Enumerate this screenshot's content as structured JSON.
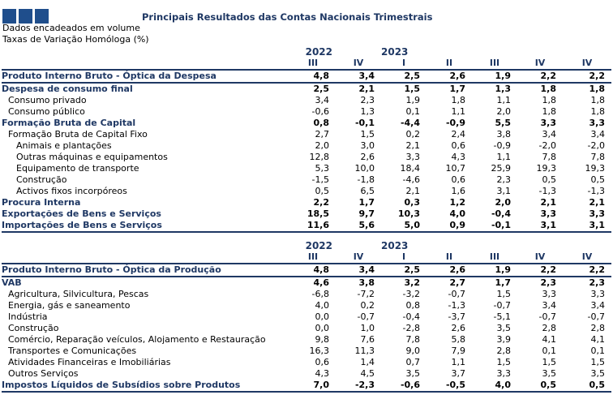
{
  "header": {
    "title": "Principais Resultados das Contas Nacionais Trimestrais",
    "subtitle1": "Dados encadeados em volume",
    "subtitle2": "Taxas de Variação Homóloga (%)"
  },
  "colors": {
    "brand": "#1f4e8c",
    "heading": "#1f3864"
  },
  "table1": {
    "years": [
      "2022",
      "2023"
    ],
    "quarters": [
      "III",
      "IV",
      "I",
      "II",
      "III",
      "IV",
      "IV"
    ],
    "rows": [
      {
        "label": "Produto Interno Bruto - Óptica da Despesa",
        "level": 0,
        "values": [
          "4,8",
          "3,4",
          "2,5",
          "2,6",
          "1,9",
          "2,2",
          "2,2"
        ]
      },
      {
        "label": "Despesa de consumo final",
        "level": 0,
        "values": [
          "2,5",
          "2,1",
          "1,5",
          "1,7",
          "1,3",
          "1,8",
          "1,8"
        ]
      },
      {
        "label": "Consumo privado",
        "level": 1,
        "values": [
          "3,4",
          "2,3",
          "1,9",
          "1,8",
          "1,1",
          "1,8",
          "1,8"
        ]
      },
      {
        "label": "Consumo público",
        "level": 1,
        "values": [
          "-0,6",
          "1,3",
          "0,1",
          "1,1",
          "2,0",
          "1,8",
          "1,8"
        ]
      },
      {
        "label": "Formação Bruta de Capital",
        "level": 0,
        "values": [
          "0,8",
          "-0,1",
          "-4,4",
          "-0,9",
          "5,5",
          "3,3",
          "3,3"
        ]
      },
      {
        "label": "Formação Bruta de Capital Fixo",
        "level": 1,
        "values": [
          "2,7",
          "1,5",
          "0,2",
          "2,4",
          "3,8",
          "3,4",
          "3,4"
        ]
      },
      {
        "label": "Animais e plantações",
        "level": 2,
        "values": [
          "2,0",
          "3,0",
          "2,1",
          "0,6",
          "-0,9",
          "-2,0",
          "-2,0"
        ]
      },
      {
        "label": "Outras máquinas e equipamentos",
        "level": 2,
        "values": [
          "12,8",
          "2,6",
          "3,3",
          "4,3",
          "1,1",
          "7,8",
          "7,8"
        ]
      },
      {
        "label": "Equipamento de transporte",
        "level": 2,
        "values": [
          "5,3",
          "10,0",
          "18,4",
          "10,7",
          "25,9",
          "19,3",
          "19,3"
        ]
      },
      {
        "label": "Construção",
        "level": 2,
        "values": [
          "-1,5",
          "-1,8",
          "-4,6",
          "0,6",
          "2,3",
          "0,5",
          "0,5"
        ]
      },
      {
        "label": "Activos fixos incorpóreos",
        "level": 2,
        "values": [
          "0,5",
          "6,5",
          "2,1",
          "1,6",
          "3,1",
          "-1,3",
          "-1,3"
        ]
      },
      {
        "label": "Procura Interna",
        "level": 0,
        "values": [
          "2,2",
          "1,7",
          "0,3",
          "1,2",
          "2,0",
          "2,1",
          "2,1"
        ]
      },
      {
        "label": "Exportações de Bens e Serviços",
        "level": 0,
        "values": [
          "18,5",
          "9,7",
          "10,3",
          "4,0",
          "-0,4",
          "3,3",
          "3,3"
        ]
      },
      {
        "label": "Importações de Bens e Serviços",
        "level": 0,
        "values": [
          "11,6",
          "5,6",
          "5,0",
          "0,9",
          "-0,1",
          "3,1",
          "3,1"
        ]
      }
    ]
  },
  "table2": {
    "years": [
      "2022",
      "2023"
    ],
    "quarters": [
      "III",
      "IV",
      "I",
      "II",
      "III",
      "IV",
      "IV"
    ],
    "rows": [
      {
        "label": "Produto Interno Bruto - Óptica da Produção",
        "level": 0,
        "values": [
          "4,8",
          "3,4",
          "2,5",
          "2,6",
          "1,9",
          "2,2",
          "2,2"
        ]
      },
      {
        "label": "VAB",
        "level": 0,
        "values": [
          "4,6",
          "3,8",
          "3,2",
          "2,7",
          "1,7",
          "2,3",
          "2,3"
        ]
      },
      {
        "label": "Agricultura, Silvicultura, Pescas",
        "level": 1,
        "values": [
          "-6,8",
          "-7,2",
          "-3,2",
          "-0,7",
          "1,5",
          "3,3",
          "3,3"
        ]
      },
      {
        "label": "Energia, gás e saneamento",
        "level": 1,
        "values": [
          "4,0",
          "0,2",
          "0,8",
          "-1,3",
          "-0,7",
          "3,4",
          "3,4"
        ]
      },
      {
        "label": "Indústria",
        "level": 1,
        "values": [
          "0,0",
          "-0,7",
          "-0,4",
          "-3,7",
          "-5,1",
          "-0,7",
          "-0,7"
        ]
      },
      {
        "label": "Construção",
        "level": 1,
        "values": [
          "0,0",
          "1,0",
          "-2,8",
          "2,6",
          "3,5",
          "2,8",
          "2,8"
        ]
      },
      {
        "label": "Comércio, Reparação veículos, Alojamento e Restauração",
        "level": 1,
        "values": [
          "9,8",
          "7,6",
          "7,8",
          "5,8",
          "3,9",
          "4,1",
          "4,1"
        ]
      },
      {
        "label": "Transportes e Comunicações",
        "level": 1,
        "values": [
          "16,3",
          "11,3",
          "9,0",
          "7,9",
          "2,8",
          "0,1",
          "0,1"
        ]
      },
      {
        "label": "Atividades Financeiras e Imobiliárias",
        "level": 1,
        "values": [
          "0,6",
          "1,4",
          "0,7",
          "1,1",
          "1,5",
          "1,5",
          "1,5"
        ]
      },
      {
        "label": "Outros Serviços",
        "level": 1,
        "values": [
          "4,3",
          "4,5",
          "3,5",
          "3,7",
          "3,3",
          "3,5",
          "3,5"
        ]
      },
      {
        "label": "Impostos Líquidos de Subsídios sobre Produtos",
        "level": 0,
        "values": [
          "7,0",
          "-2,3",
          "-0,6",
          "-0,5",
          "4,0",
          "0,5",
          "0,5"
        ]
      }
    ]
  }
}
